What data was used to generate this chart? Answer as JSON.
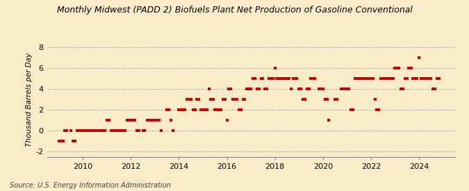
{
  "title": "Monthly Midwest (PADD 2) Biofuels Plant Net Production of Gasoline Conventional",
  "ylabel": "Thousand Barrels per Day",
  "source": "Source: U.S. Energy Information Administration",
  "background_color": "#faecc8",
  "plot_background": "#faecc8",
  "marker_color": "#cc0000",
  "ylim": [
    -2.5,
    8.5
  ],
  "yticks": [
    -2,
    0,
    2,
    4,
    6,
    8
  ],
  "xlim_start": 2008.5,
  "xlim_end": 2025.5,
  "xticks": [
    2010,
    2012,
    2014,
    2016,
    2018,
    2020,
    2022,
    2024
  ],
  "data_points": [
    [
      2009.0,
      -1.0
    ],
    [
      2009.08,
      -1.0
    ],
    [
      2009.17,
      -1.0
    ],
    [
      2009.25,
      0.0
    ],
    [
      2009.33,
      0.0
    ],
    [
      2009.5,
      0.0
    ],
    [
      2009.58,
      -1.0
    ],
    [
      2009.67,
      -1.0
    ],
    [
      2009.75,
      0.0
    ],
    [
      2009.83,
      0.0
    ],
    [
      2009.92,
      0.0
    ],
    [
      2010.0,
      0.0
    ],
    [
      2010.08,
      0.0
    ],
    [
      2010.17,
      0.0
    ],
    [
      2010.25,
      0.0
    ],
    [
      2010.33,
      0.0
    ],
    [
      2010.42,
      0.0
    ],
    [
      2010.5,
      0.0
    ],
    [
      2010.58,
      0.0
    ],
    [
      2010.67,
      0.0
    ],
    [
      2010.75,
      0.0
    ],
    [
      2010.83,
      0.0
    ],
    [
      2010.92,
      0.0
    ],
    [
      2011.0,
      1.0
    ],
    [
      2011.08,
      1.0
    ],
    [
      2011.17,
      0.0
    ],
    [
      2011.25,
      0.0
    ],
    [
      2011.33,
      0.0
    ],
    [
      2011.42,
      0.0
    ],
    [
      2011.5,
      0.0
    ],
    [
      2011.58,
      0.0
    ],
    [
      2011.67,
      0.0
    ],
    [
      2011.75,
      0.0
    ],
    [
      2011.83,
      1.0
    ],
    [
      2011.92,
      1.0
    ],
    [
      2012.0,
      1.0
    ],
    [
      2012.08,
      1.0
    ],
    [
      2012.17,
      1.0
    ],
    [
      2012.25,
      0.0
    ],
    [
      2012.33,
      0.0
    ],
    [
      2012.5,
      0.0
    ],
    [
      2012.58,
      0.0
    ],
    [
      2012.67,
      1.0
    ],
    [
      2012.75,
      1.0
    ],
    [
      2012.83,
      1.0
    ],
    [
      2012.92,
      1.0
    ],
    [
      2013.0,
      1.0
    ],
    [
      2013.08,
      1.0
    ],
    [
      2013.17,
      1.0
    ],
    [
      2013.25,
      0.0
    ],
    [
      2013.5,
      2.0
    ],
    [
      2013.58,
      2.0
    ],
    [
      2013.67,
      1.0
    ],
    [
      2013.75,
      0.0
    ],
    [
      2014.0,
      2.0
    ],
    [
      2014.08,
      2.0
    ],
    [
      2014.17,
      2.0
    ],
    [
      2014.25,
      2.0
    ],
    [
      2014.33,
      3.0
    ],
    [
      2014.42,
      3.0
    ],
    [
      2014.5,
      3.0
    ],
    [
      2014.58,
      2.0
    ],
    [
      2014.67,
      2.0
    ],
    [
      2014.75,
      3.0
    ],
    [
      2014.83,
      3.0
    ],
    [
      2014.92,
      2.0
    ],
    [
      2015.0,
      2.0
    ],
    [
      2015.08,
      2.0
    ],
    [
      2015.17,
      2.0
    ],
    [
      2015.25,
      4.0
    ],
    [
      2015.33,
      3.0
    ],
    [
      2015.42,
      3.0
    ],
    [
      2015.5,
      2.0
    ],
    [
      2015.58,
      2.0
    ],
    [
      2015.67,
      2.0
    ],
    [
      2015.75,
      2.0
    ],
    [
      2015.83,
      3.0
    ],
    [
      2015.92,
      3.0
    ],
    [
      2016.0,
      1.0
    ],
    [
      2016.08,
      4.0
    ],
    [
      2016.17,
      4.0
    ],
    [
      2016.25,
      3.0
    ],
    [
      2016.33,
      3.0
    ],
    [
      2016.42,
      3.0
    ],
    [
      2016.5,
      2.0
    ],
    [
      2016.58,
      2.0
    ],
    [
      2016.67,
      3.0
    ],
    [
      2016.75,
      3.0
    ],
    [
      2016.83,
      4.0
    ],
    [
      2016.92,
      4.0
    ],
    [
      2017.0,
      4.0
    ],
    [
      2017.08,
      5.0
    ],
    [
      2017.17,
      5.0
    ],
    [
      2017.25,
      4.0
    ],
    [
      2017.33,
      4.0
    ],
    [
      2017.42,
      5.0
    ],
    [
      2017.5,
      5.0
    ],
    [
      2017.58,
      4.0
    ],
    [
      2017.67,
      4.0
    ],
    [
      2017.75,
      5.0
    ],
    [
      2017.83,
      5.0
    ],
    [
      2017.92,
      5.0
    ],
    [
      2018.0,
      6.0
    ],
    [
      2018.08,
      5.0
    ],
    [
      2018.17,
      5.0
    ],
    [
      2018.25,
      5.0
    ],
    [
      2018.33,
      5.0
    ],
    [
      2018.42,
      5.0
    ],
    [
      2018.5,
      5.0
    ],
    [
      2018.58,
      5.0
    ],
    [
      2018.67,
      4.0
    ],
    [
      2018.75,
      5.0
    ],
    [
      2018.83,
      5.0
    ],
    [
      2018.92,
      5.0
    ],
    [
      2019.0,
      4.0
    ],
    [
      2019.08,
      4.0
    ],
    [
      2019.17,
      3.0
    ],
    [
      2019.25,
      3.0
    ],
    [
      2019.33,
      4.0
    ],
    [
      2019.42,
      4.0
    ],
    [
      2019.5,
      5.0
    ],
    [
      2019.58,
      5.0
    ],
    [
      2019.67,
      5.0
    ],
    [
      2019.83,
      4.0
    ],
    [
      2019.92,
      4.0
    ],
    [
      2020.0,
      4.0
    ],
    [
      2020.08,
      3.0
    ],
    [
      2020.17,
      3.0
    ],
    [
      2020.25,
      1.0
    ],
    [
      2020.5,
      3.0
    ],
    [
      2020.58,
      3.0
    ],
    [
      2020.75,
      4.0
    ],
    [
      2020.83,
      4.0
    ],
    [
      2020.92,
      4.0
    ],
    [
      2021.0,
      4.0
    ],
    [
      2021.08,
      4.0
    ],
    [
      2021.17,
      2.0
    ],
    [
      2021.25,
      2.0
    ],
    [
      2021.33,
      5.0
    ],
    [
      2021.42,
      5.0
    ],
    [
      2021.5,
      5.0
    ],
    [
      2021.58,
      5.0
    ],
    [
      2021.67,
      5.0
    ],
    [
      2021.75,
      5.0
    ],
    [
      2021.83,
      5.0
    ],
    [
      2021.92,
      5.0
    ],
    [
      2022.0,
      5.0
    ],
    [
      2022.08,
      5.0
    ],
    [
      2022.17,
      3.0
    ],
    [
      2022.25,
      2.0
    ],
    [
      2022.33,
      2.0
    ],
    [
      2022.42,
      5.0
    ],
    [
      2022.5,
      5.0
    ],
    [
      2022.58,
      5.0
    ],
    [
      2022.67,
      5.0
    ],
    [
      2022.75,
      5.0
    ],
    [
      2022.83,
      5.0
    ],
    [
      2022.92,
      5.0
    ],
    [
      2023.0,
      6.0
    ],
    [
      2023.08,
      6.0
    ],
    [
      2023.17,
      6.0
    ],
    [
      2023.25,
      4.0
    ],
    [
      2023.33,
      4.0
    ],
    [
      2023.42,
      5.0
    ],
    [
      2023.5,
      5.0
    ],
    [
      2023.58,
      6.0
    ],
    [
      2023.67,
      6.0
    ],
    [
      2023.75,
      5.0
    ],
    [
      2023.83,
      5.0
    ],
    [
      2023.92,
      5.0
    ],
    [
      2024.0,
      7.0
    ],
    [
      2024.08,
      5.0
    ],
    [
      2024.17,
      5.0
    ],
    [
      2024.25,
      5.0
    ],
    [
      2024.33,
      5.0
    ],
    [
      2024.42,
      5.0
    ],
    [
      2024.5,
      5.0
    ],
    [
      2024.58,
      4.0
    ],
    [
      2024.67,
      4.0
    ],
    [
      2024.75,
      5.0
    ],
    [
      2024.83,
      5.0
    ]
  ]
}
